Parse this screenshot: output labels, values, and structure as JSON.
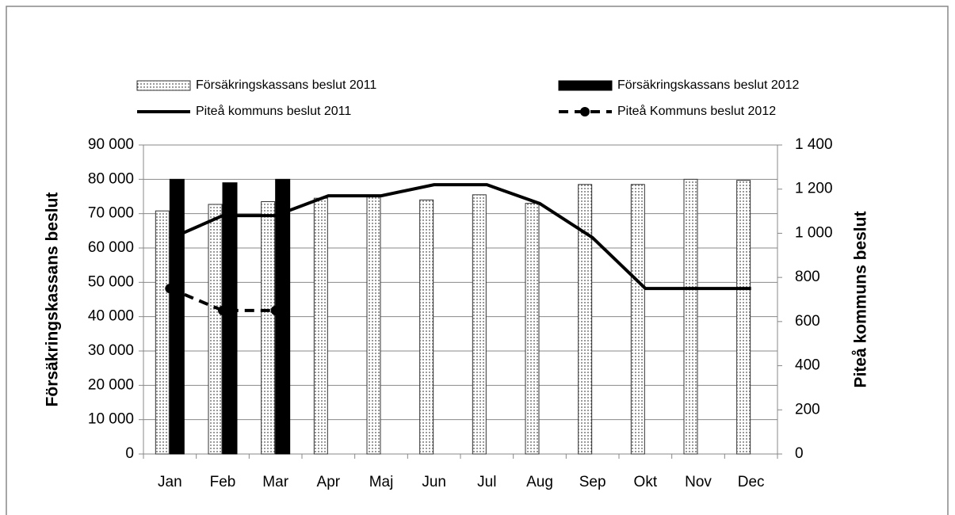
{
  "chart_data": {
    "type": "bar_line",
    "y_label": "Försäkringskassans beslut",
    "y2_label": "Piteå kommuns beslut",
    "categories": [
      "Jan",
      "Feb",
      "Mar",
      "Apr",
      "Maj",
      "Jun",
      "Jul",
      "Aug",
      "Sep",
      "Okt",
      "Nov",
      "Dec"
    ],
    "series": [
      {
        "name": "Försäkringskassans beslut 2011",
        "kind": "bar",
        "pattern": "dotted",
        "color": "#000000",
        "values": [
          70800,
          72700,
          73500,
          74500,
          75000,
          74000,
          75500,
          73000,
          78500,
          78500,
          80000,
          79700
        ]
      },
      {
        "name": "Försäkringskassans beslut 2012",
        "kind": "bar",
        "color": "#000000",
        "values": [
          80000,
          79000,
          80000,
          null,
          null,
          null,
          null,
          null,
          null,
          null,
          null,
          null
        ]
      },
      {
        "name": "Piteå kommuns beslut 2011",
        "kind": "line",
        "axis": "y2",
        "color": "#000000",
        "values": [
          975,
          1080,
          1080,
          1170,
          1170,
          1220,
          1220,
          1135,
          980,
          750,
          750,
          750
        ]
      },
      {
        "name": "Piteå Kommuns beslut 2012",
        "kind": "line",
        "axis": "y2",
        "dashed": true,
        "marker": "circle",
        "color": "#000000",
        "values": [
          750,
          650,
          650,
          null,
          null,
          null,
          null,
          null,
          null,
          null,
          null,
          null
        ]
      }
    ],
    "ylim": [
      0,
      90000
    ],
    "yticks": [
      0,
      {
        "value": 10000,
        "label": "10 000"
      },
      {
        "value": 20000,
        "label": "20 000"
      },
      {
        "value": 30000,
        "label": "30 000"
      },
      {
        "value": 40000,
        "label": "40 000"
      },
      {
        "value": 50000,
        "label": "50 000"
      },
      {
        "value": 60000,
        "label": "60 000"
      },
      {
        "value": 70000,
        "label": "70 000"
      },
      {
        "value": 80000,
        "label": "80 000"
      },
      {
        "value": 90000,
        "label": "90 000"
      }
    ],
    "y2lim": [
      0,
      1400
    ],
    "y2ticks": [
      0,
      200,
      400,
      600,
      800,
      {
        "value": 1000,
        "label": "1 000"
      },
      {
        "value": 1200,
        "label": "1 200"
      },
      {
        "value": 1400,
        "label": "1 400"
      }
    ],
    "grid": true
  }
}
